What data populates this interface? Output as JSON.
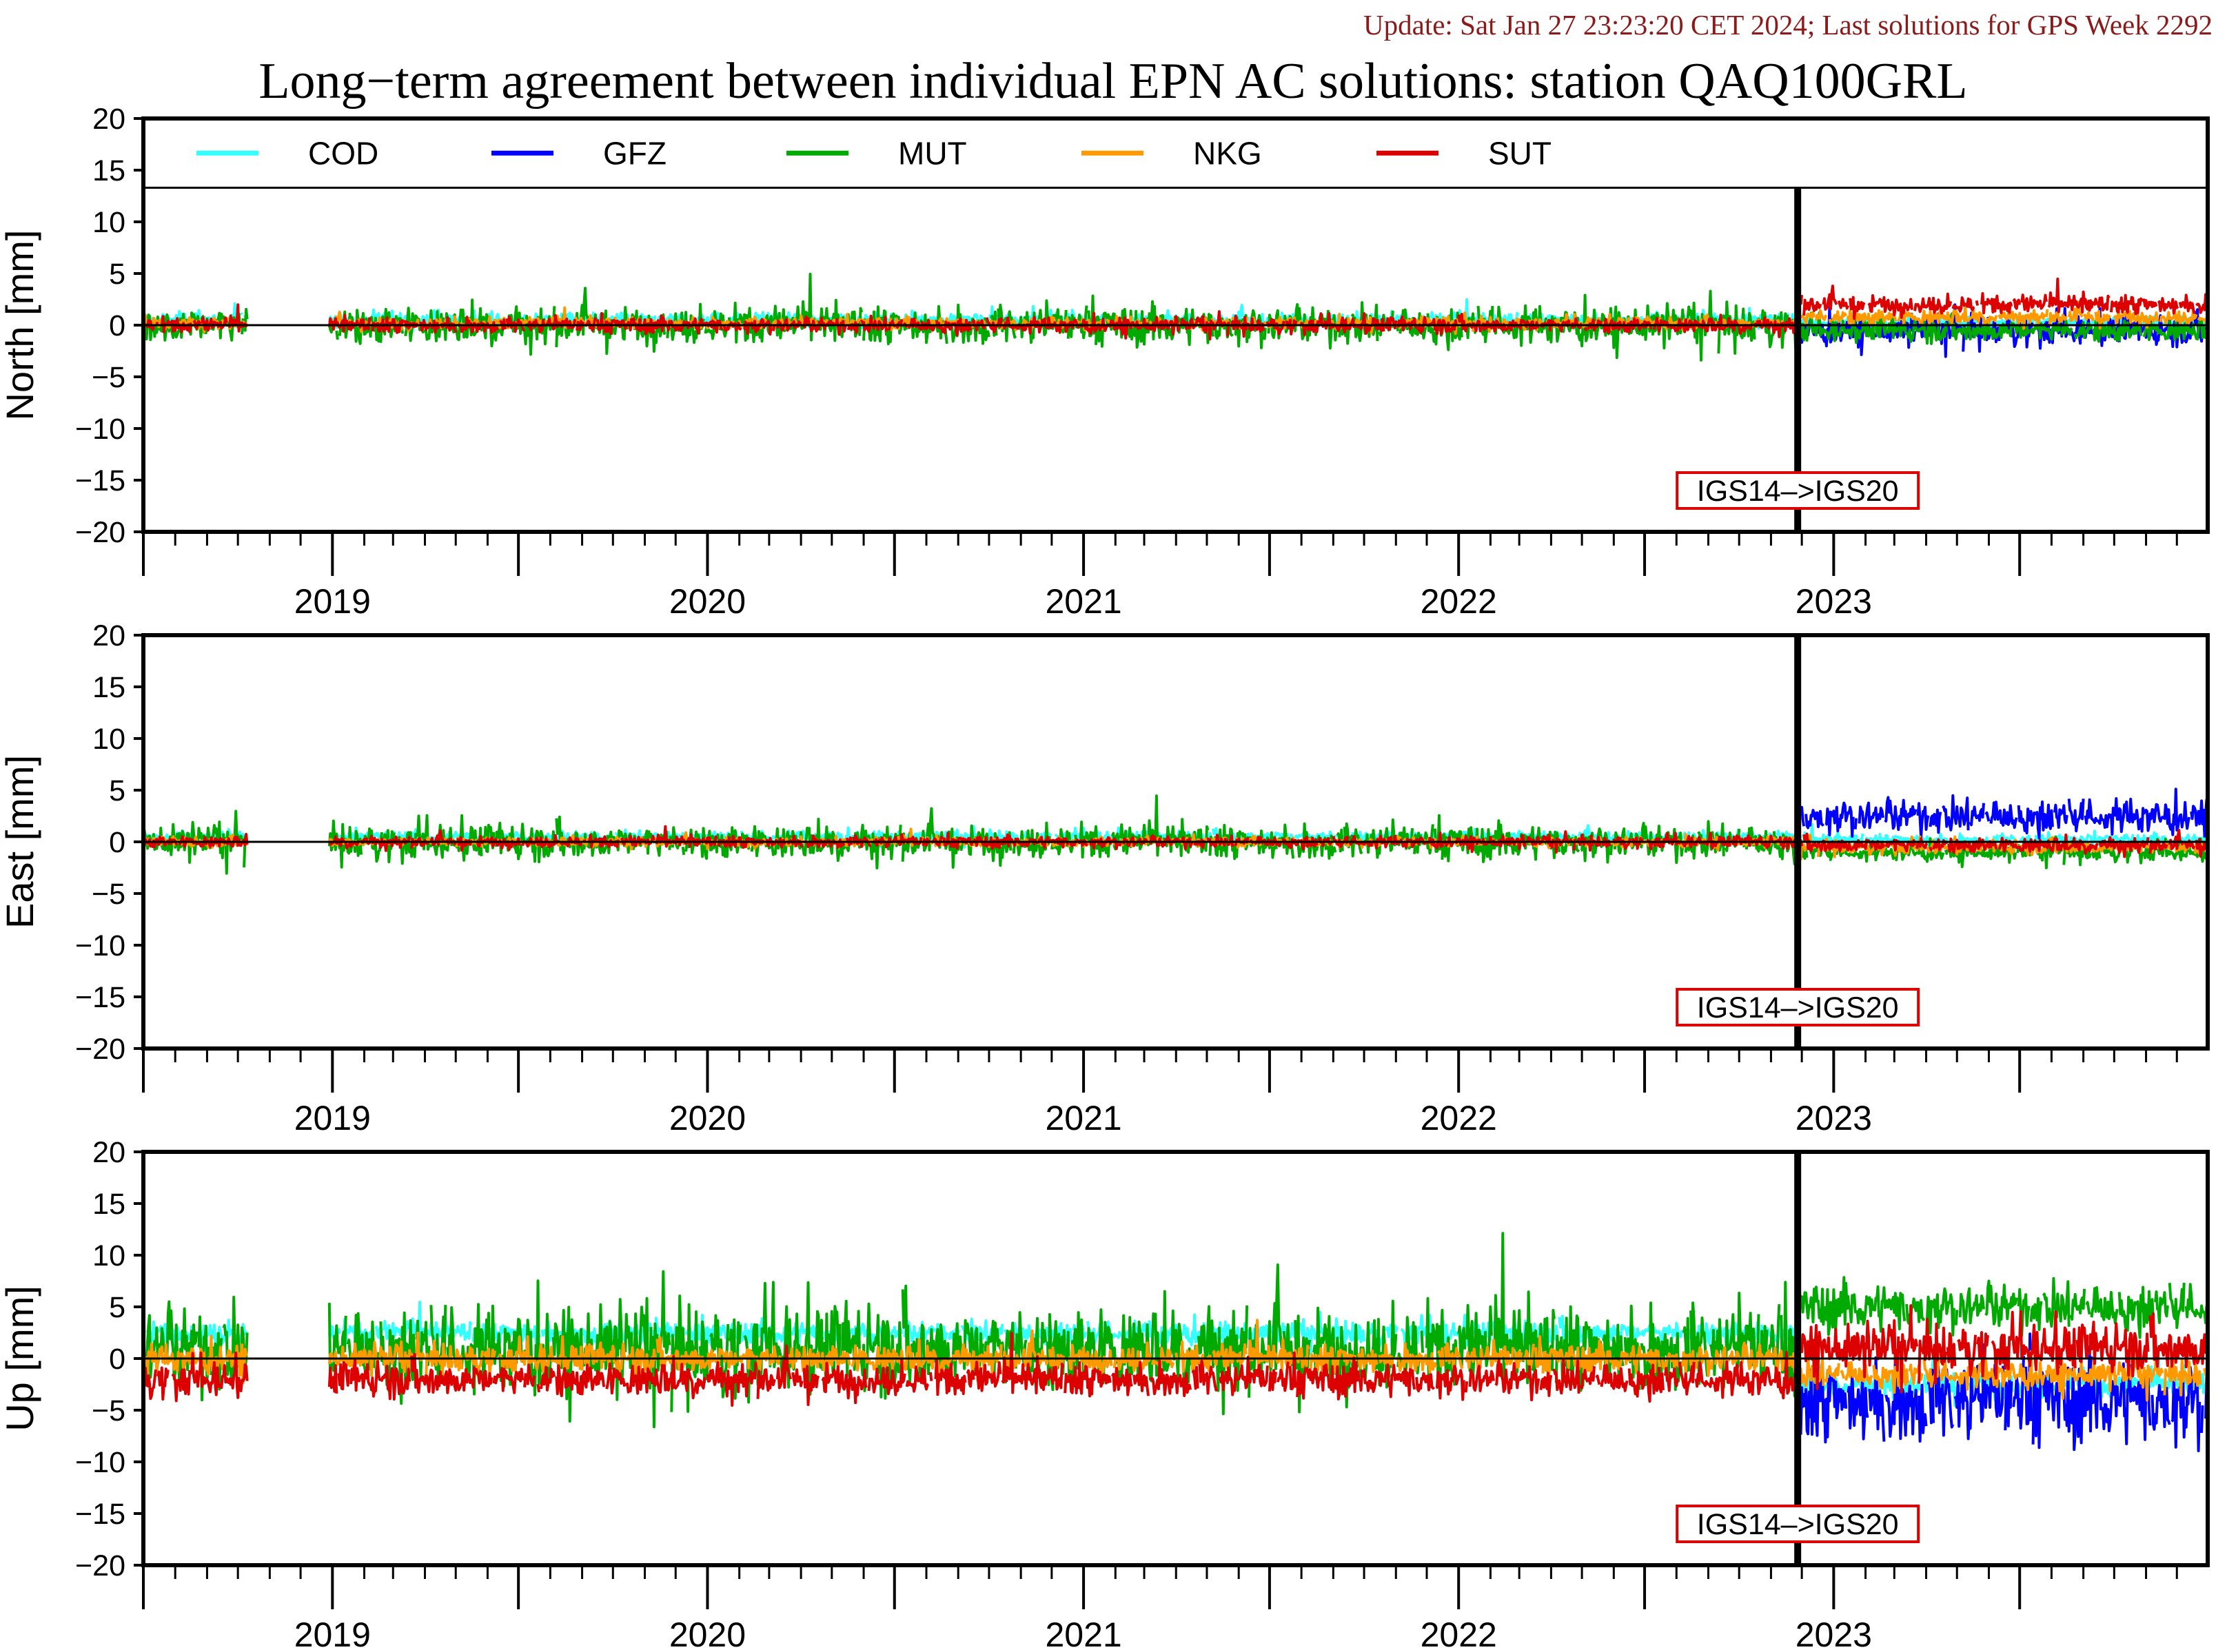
{
  "update_text": "Update: Sat Jan 27 23:23:20 CET 2024; Last solutions for GPS Week 2292",
  "chart_data": {
    "type": "line",
    "title": "Long−term agreement between individual EPN AC solutions: station QAQ100GRL",
    "x_range": [
      "2018-07-01",
      "2023-12-31"
    ],
    "x_ticks": [
      "2019",
      "2020",
      "2021",
      "2022",
      "2023"
    ],
    "ylim": [
      -20,
      20
    ],
    "y_ticks": [
      20,
      15,
      10,
      5,
      0,
      -5,
      -10,
      -15,
      -20
    ],
    "legend": {
      "placement": "top",
      "entries": [
        {
          "name": "COD",
          "color": "#33ffff"
        },
        {
          "name": "GFZ",
          "color": "#0000ff"
        },
        {
          "name": "MUT",
          "color": "#00aa00"
        },
        {
          "name": "NKG",
          "color": "#ff9900"
        },
        {
          "name": "SUT",
          "color": "#dd0000"
        }
      ]
    },
    "event": {
      "date": "2022-11-27",
      "label": "IGS14–>IGS20"
    },
    "data_gaps": [
      [
        "2018-10-10",
        "2018-12-29"
      ]
    ],
    "panels": [
      {
        "ylabel": "North [mm]",
        "series": [
          {
            "name": "COD",
            "segments": [
              {
                "x": [
                  "2018-07-01",
                  "2022-11-27"
                ],
                "y_mean": 0.5,
                "y_spread": 0.8
              },
              {
                "x": [
                  "2022-11-27",
                  "2023-12-31"
                ],
                "y_mean": 0.3,
                "y_spread": 0.6
              }
            ]
          },
          {
            "name": "GFZ",
            "segments": [
              {
                "x": [
                  "2022-11-27",
                  "2023-12-31"
                ],
                "y_mean": -0.5,
                "y_spread": 1.5
              }
            ]
          },
          {
            "name": "MUT",
            "segments": [
              {
                "x": [
                  "2018-07-01",
                  "2022-11-27"
                ],
                "y_mean": 0.0,
                "y_spread": 2.0
              },
              {
                "x": [
                  "2022-11-27",
                  "2023-12-31"
                ],
                "y_mean": -0.5,
                "y_spread": 1.2
              }
            ]
          },
          {
            "name": "NKG",
            "segments": [
              {
                "x": [
                  "2018-07-01",
                  "2022-11-27"
                ],
                "y_mean": 0.2,
                "y_spread": 0.6
              },
              {
                "x": [
                  "2022-11-27",
                  "2023-12-31"
                ],
                "y_mean": 0.8,
                "y_spread": 0.8
              }
            ]
          },
          {
            "name": "SUT",
            "segments": [
              {
                "x": [
                  "2018-07-01",
                  "2022-11-27"
                ],
                "y_mean": 0.0,
                "y_spread": 0.8
              },
              {
                "x": [
                  "2022-11-27",
                  "2023-12-31"
                ],
                "y_mean": 2.0,
                "y_spread": 1.0
              }
            ]
          }
        ]
      },
      {
        "ylabel": "East [mm]",
        "series": [
          {
            "name": "COD",
            "segments": [
              {
                "x": [
                  "2018-07-01",
                  "2022-11-27"
                ],
                "y_mean": 0.5,
                "y_spread": 0.6
              },
              {
                "x": [
                  "2022-11-27",
                  "2023-12-31"
                ],
                "y_mean": 0.2,
                "y_spread": 0.6
              }
            ]
          },
          {
            "name": "GFZ",
            "segments": [
              {
                "x": [
                  "2022-11-27",
                  "2023-12-31"
                ],
                "y_mean": 2.5,
                "y_spread": 1.8
              }
            ]
          },
          {
            "name": "MUT",
            "segments": [
              {
                "x": [
                  "2018-07-01",
                  "2022-11-27"
                ],
                "y_mean": 0.0,
                "y_spread": 1.8
              },
              {
                "x": [
                  "2022-11-27",
                  "2023-12-31"
                ],
                "y_mean": -1.0,
                "y_spread": 0.9
              }
            ]
          },
          {
            "name": "NKG",
            "segments": [
              {
                "x": [
                  "2018-07-01",
                  "2022-11-27"
                ],
                "y_mean": 0.0,
                "y_spread": 0.5
              },
              {
                "x": [
                  "2022-11-27",
                  "2023-12-31"
                ],
                "y_mean": -0.5,
                "y_spread": 0.7
              }
            ]
          },
          {
            "name": "SUT",
            "segments": [
              {
                "x": [
                  "2018-07-01",
                  "2022-11-27"
                ],
                "y_mean": 0.0,
                "y_spread": 0.6
              },
              {
                "x": [
                  "2022-11-27",
                  "2023-12-31"
                ],
                "y_mean": -0.3,
                "y_spread": 0.8
              }
            ]
          }
        ]
      },
      {
        "ylabel": "Up [mm]",
        "series": [
          {
            "name": "COD",
            "segments": [
              {
                "x": [
                  "2018-07-01",
                  "2022-11-27"
                ],
                "y_mean": 2.5,
                "y_spread": 1.2
              },
              {
                "x": [
                  "2022-11-27",
                  "2023-12-31"
                ],
                "y_mean": -2.5,
                "y_spread": 1.5
              }
            ]
          },
          {
            "name": "GFZ",
            "segments": [
              {
                "x": [
                  "2022-11-27",
                  "2023-12-31"
                ],
                "y_mean": -4.0,
                "y_spread": 4.5
              }
            ]
          },
          {
            "name": "MUT",
            "segments": [
              {
                "x": [
                  "2018-07-01",
                  "2022-11-27"
                ],
                "y_mean": 1.0,
                "y_spread": 4.5
              },
              {
                "x": [
                  "2022-11-27",
                  "2023-12-31"
                ],
                "y_mean": 5.0,
                "y_spread": 2.5
              }
            ]
          },
          {
            "name": "NKG",
            "segments": [
              {
                "x": [
                  "2018-07-01",
                  "2022-11-27"
                ],
                "y_mean": 0.0,
                "y_spread": 1.5
              },
              {
                "x": [
                  "2022-11-27",
                  "2023-12-31"
                ],
                "y_mean": -1.5,
                "y_spread": 1.5
              }
            ]
          },
          {
            "name": "SUT",
            "segments": [
              {
                "x": [
                  "2018-07-01",
                  "2022-11-27"
                ],
                "y_mean": -2.0,
                "y_spread": 1.8
              },
              {
                "x": [
                  "2022-11-27",
                  "2023-12-31"
                ],
                "y_mean": 1.0,
                "y_spread": 2.5
              }
            ]
          }
        ]
      }
    ]
  }
}
